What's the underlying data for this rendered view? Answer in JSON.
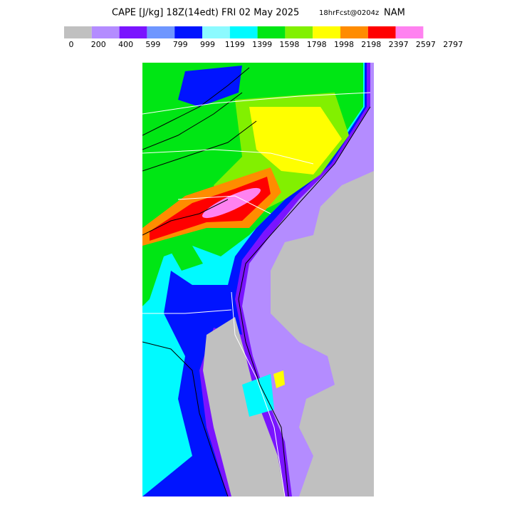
{
  "header": {
    "title": "CAPE [J/kg] 18Z(14edt) FRI 02 May 2025",
    "forecast": "18hrFcst@0204z",
    "model": "NAM"
  },
  "colorbar": {
    "colors": [
      "#c0c0c0",
      "#b48cff",
      "#7a14ff",
      "#6e96ff",
      "#0014ff",
      "#8cfaff",
      "#00faff",
      "#00e614",
      "#82f000",
      "#ffff00",
      "#ff8c00",
      "#ff0000",
      "#ff82f0"
    ],
    "ticks": [
      0,
      200,
      400,
      599,
      799,
      999,
      1199,
      1399,
      1598,
      1798,
      1998,
      2198,
      2397,
      2597,
      2797
    ]
  }
}
